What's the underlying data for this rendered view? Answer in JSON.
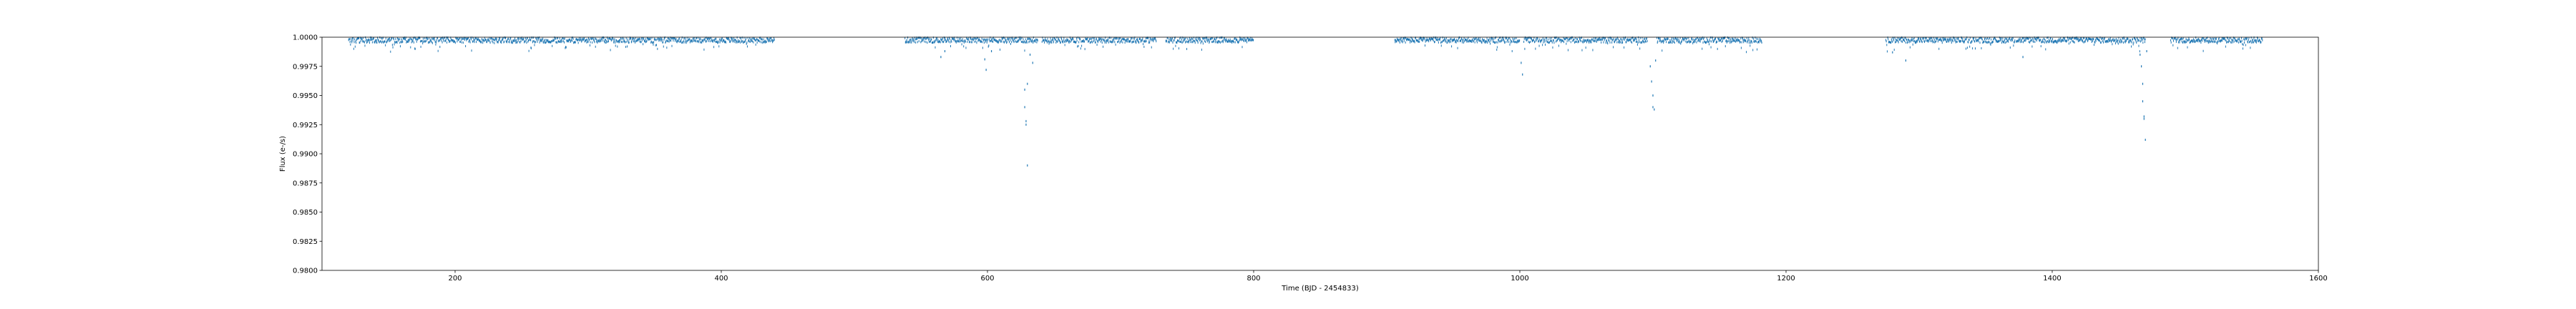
{
  "chart_data": {
    "type": "scatter",
    "title": "",
    "xlabel": "Time (BJD - 2454833)",
    "ylabel": "Flux (e-/s)",
    "xlim": [
      100,
      1600
    ],
    "ylim": [
      0.98,
      1.0
    ],
    "xticks": [
      200,
      400,
      600,
      800,
      1000,
      1200,
      1400,
      1600
    ],
    "yticks": [
      0.98,
      0.9825,
      0.985,
      0.9875,
      0.99,
      0.9925,
      0.995,
      0.9975,
      1.0
    ],
    "xtick_labels": [
      "200",
      "400",
      "600",
      "800",
      "1000",
      "1200",
      "1400",
      "1600"
    ],
    "ytick_labels": [
      "0.9800",
      "0.9825",
      "0.9850",
      "0.9875",
      "0.9900",
      "0.9925",
      "0.9950",
      "0.9975",
      "1.0000"
    ],
    "grid": false,
    "marker_color": "#1f77b4",
    "observing_segments": [
      [
        120,
        440
      ],
      [
        538,
        638
      ],
      [
        641,
        727
      ],
      [
        734,
        800
      ],
      [
        906,
        1000
      ],
      [
        1003,
        1096
      ],
      [
        1103,
        1182
      ],
      [
        1275,
        1372
      ],
      [
        1373,
        1470
      ],
      [
        1489,
        1558
      ]
    ],
    "baseline_flux": 0.99975,
    "series": [
      {
        "points": [
          [
            170,
            0.999
          ],
          [
            257,
            0.9991
          ],
          [
            565,
            0.9983
          ],
          [
            568,
            0.9988
          ],
          [
            598,
            0.9981
          ],
          [
            599,
            0.9972
          ],
          [
            603,
            0.9988
          ],
          [
            628,
            0.9955
          ],
          [
            628,
            0.994
          ],
          [
            629,
            0.9928
          ],
          [
            629,
            0.9925
          ],
          [
            630,
            0.996
          ],
          [
            630,
            0.989
          ],
          [
            632,
            0.9985
          ],
          [
            634,
            0.9978
          ],
          [
            1001,
            0.9978
          ],
          [
            1002,
            0.9968
          ],
          [
            1098,
            0.9975
          ],
          [
            1099,
            0.9962
          ],
          [
            1100,
            0.995
          ],
          [
            1100,
            0.994
          ],
          [
            1101,
            0.9938
          ],
          [
            1102,
            0.998
          ],
          [
            1280,
            0.9987
          ],
          [
            1290,
            0.998
          ],
          [
            1378,
            0.9983
          ],
          [
            1466,
            0.9985
          ],
          [
            1467,
            0.9975
          ],
          [
            1468,
            0.996
          ],
          [
            1468,
            0.9945
          ],
          [
            1469,
            0.9932
          ],
          [
            1469,
            0.993
          ],
          [
            1470,
            0.9912
          ],
          [
            1471,
            0.9988
          ]
        ]
      }
    ]
  }
}
